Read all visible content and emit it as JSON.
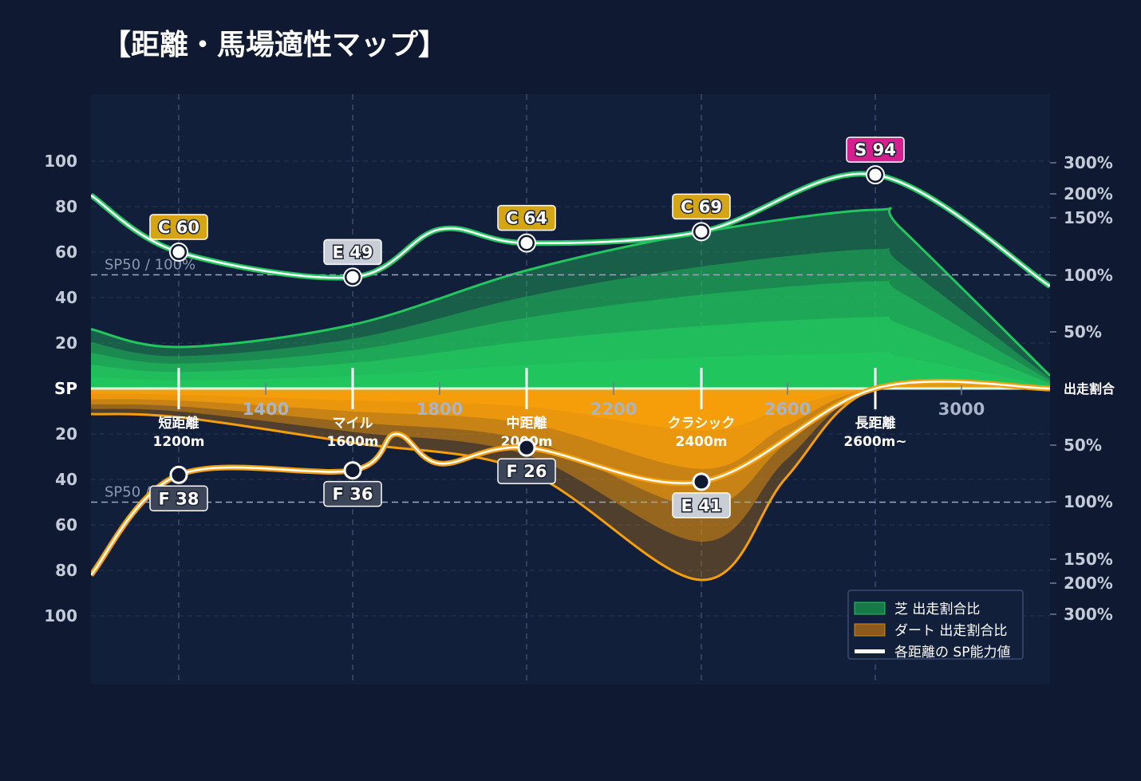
{
  "title": "【距離・馬場適性マップ】",
  "colors": {
    "background": "#0f1932",
    "plot_bg": "#121f3b",
    "turf": "#22c55e",
    "dirt": "#f59e0b",
    "grade_S": "#d61f8f",
    "grade_C": "#d4a615",
    "grade_E": "#c9ced6",
    "grade_F": "#3c4658"
  },
  "chart_data": {
    "type": "area",
    "x_ticks": [
      "1400",
      "1800",
      "2200",
      "2600",
      "3000"
    ],
    "left_axis_top": [
      "100",
      "80",
      "60",
      "40",
      "20"
    ],
    "left_axis_center": "SP",
    "left_axis_bottom": [
      "20",
      "40",
      "60",
      "80",
      "100"
    ],
    "right_axis_top": [
      "300%",
      "200%",
      "150%",
      "100%",
      "50%"
    ],
    "right_axis_center": "出走割合",
    "right_axis_bottom": [
      "50%",
      "100%",
      "150%",
      "200%",
      "300%"
    ],
    "reference_label": "SP50 / 100%",
    "categories": [
      {
        "name": "短距離",
        "dist": "1200m"
      },
      {
        "name": "マイル",
        "dist": "1600m"
      },
      {
        "name": "中距離",
        "dist": "2000m"
      },
      {
        "name": "クラシック",
        "dist": "2400m"
      },
      {
        "name": "長距離",
        "dist": "2600m~"
      }
    ],
    "turf_sp": [
      {
        "grade": "C",
        "value": 60
      },
      {
        "grade": "E",
        "value": 49
      },
      {
        "grade": "C",
        "value": 64
      },
      {
        "grade": "C",
        "value": 69
      },
      {
        "grade": "S",
        "value": 94
      }
    ],
    "dirt_sp": [
      {
        "grade": "F",
        "value": 38
      },
      {
        "grade": "F",
        "value": 36
      },
      {
        "grade": "F",
        "value": 26
      },
      {
        "grade": "E",
        "value": 41
      },
      {
        "grade": null,
        "value": 0
      }
    ],
    "turf_ratio_pct": [
      65,
      100,
      185,
      245,
      280
    ],
    "dirt_ratio_pct": [
      45,
      85,
      130,
      300,
      0
    ],
    "legend": [
      {
        "label": "芝 出走割合比",
        "kind": "turf"
      },
      {
        "label": "ダート 出走割合比",
        "kind": "dirt"
      },
      {
        "label": "各距離の SP能力値",
        "kind": "line"
      }
    ]
  }
}
